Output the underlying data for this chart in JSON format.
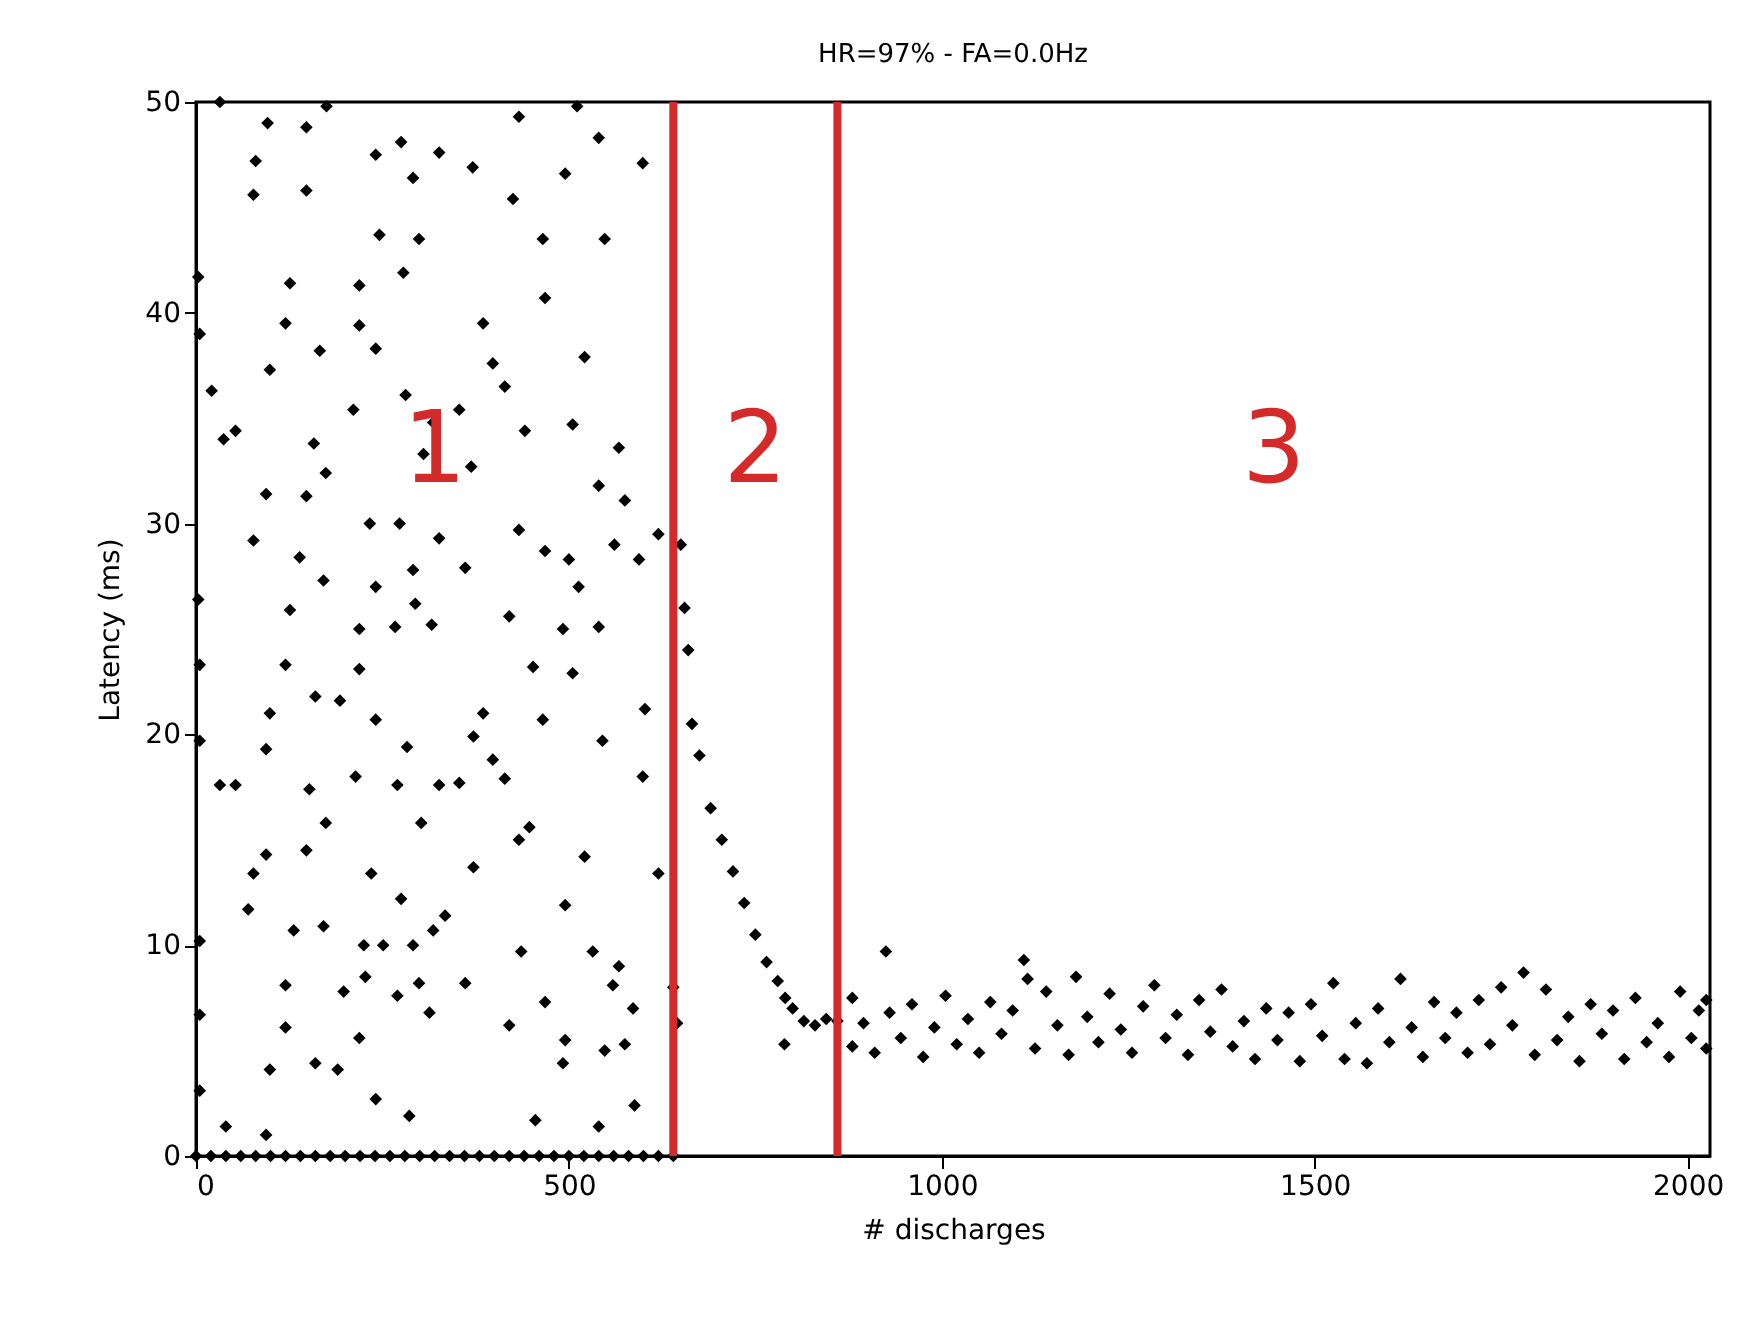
{
  "chart_data": {
    "type": "scatter",
    "title": "HR=97% - FA=0.0Hz",
    "xlabel": "# discharges",
    "ylabel": "Latency (ms)",
    "xlim": [
      0,
      2030
    ],
    "ylim": [
      0,
      50
    ],
    "xticks": [
      0,
      500,
      1000,
      1500,
      2000
    ],
    "yticks": [
      0,
      10,
      20,
      30,
      40,
      50
    ],
    "grid": false,
    "marker": "diamond",
    "ref_lines": [
      {
        "axis": "x",
        "value": 640,
        "color": "#d42a2a"
      },
      {
        "axis": "x",
        "value": 860,
        "color": "#d42a2a"
      }
    ],
    "annotations": [
      "1",
      "2",
      "3"
    ],
    "series": [
      {
        "color": "#000000",
        "x": [
          32,
          96,
          148,
          175,
          80,
          77,
          148,
          241,
          275,
          291,
          326,
          371,
          433,
          425,
          495,
          511,
          540,
          599,
          246,
          299,
          278,
          219,
          126,
          465,
          548,
          468,
          3,
          5,
          120,
          219,
          241,
          166,
          385,
          398,
          414,
          521,
          99,
          21,
          37,
          53,
          158,
          211,
          281,
          353,
          305,
          174,
          318,
          441,
          505,
          567,
          369,
          94,
          148,
          540,
          575,
          77,
          233,
          273,
          326,
          433,
          468,
          500,
          561,
          620,
          594,
          139,
          171,
          241,
          291,
          361,
          513,
          3,
          126,
          294,
          420,
          219,
          267,
          316,
          492,
          540,
          5,
          120,
          219,
          452,
          505,
          160,
          193,
          99,
          241,
          385,
          465,
          602,
          5,
          94,
          283,
          372,
          398,
          545,
          32,
          53,
          152,
          214,
          270,
          326,
          353,
          414,
          599,
          174,
          302,
          433,
          447,
          94,
          148,
          521,
          235,
          372,
          77,
          620,
          70,
          275,
          495,
          334,
          131,
          171,
          318,
          5,
          225,
          251,
          291,
          436,
          532,
          567,
          120,
          227,
          299,
          361,
          559,
          198,
          270,
          468,
          313,
          586,
          5,
          120,
          420,
          495,
          575,
          219,
          99,
          160,
          190,
          492,
          548,
          5,
          241,
          286,
          455,
          540,
          588,
          40,
          94,
          0,
          20,
          40,
          60,
          80,
          100,
          120,
          140,
          160,
          180,
          200,
          220,
          240,
          260,
          280,
          300,
          320,
          340,
          360,
          380,
          400,
          420,
          440,
          460,
          480,
          500,
          520,
          540,
          560,
          580,
          600,
          620,
          640,
          640,
          645,
          650,
          655,
          660,
          665,
          675,
          690,
          705,
          720,
          735,
          750,
          765,
          780,
          789,
          790,
          800,
          815,
          830,
          845,
          860,
          880,
          880,
          895,
          910,
          925,
          930,
          945,
          960,
          975,
          990,
          1005,
          1020,
          1035,
          1050,
          1065,
          1080,
          1095,
          1110,
          1115,
          1125,
          1140,
          1155,
          1170,
          1180,
          1195,
          1210,
          1225,
          1240,
          1255,
          1270,
          1285,
          1300,
          1315,
          1330,
          1345,
          1360,
          1375,
          1390,
          1405,
          1420,
          1435,
          1450,
          1465,
          1480,
          1495,
          1510,
          1525,
          1540,
          1555,
          1570,
          1585,
          1600,
          1615,
          1630,
          1645,
          1660,
          1675,
          1690,
          1705,
          1720,
          1735,
          1750,
          1765,
          1780,
          1795,
          1810,
          1825,
          1840,
          1855,
          1870,
          1885,
          1900,
          1915,
          1930,
          1945,
          1960,
          1975,
          1990,
          2005,
          2015,
          2025,
          2025
        ],
        "values": [
          50,
          49,
          48.8,
          49.8,
          47.2,
          45.6,
          45.8,
          47.5,
          48.1,
          46.4,
          47.6,
          46.9,
          49.3,
          45.4,
          46.6,
          49.8,
          48.3,
          47.1,
          43.7,
          43.5,
          41.9,
          41.3,
          41.4,
          43.5,
          43.5,
          40.7,
          41.7,
          39,
          39.5,
          39.4,
          38.3,
          38.2,
          39.5,
          37.6,
          36.5,
          37.9,
          37.3,
          36.3,
          34,
          34.4,
          33.8,
          35.4,
          36.1,
          35.4,
          33.3,
          32.4,
          34.8,
          34.4,
          34.7,
          33.6,
          32.7,
          31.4,
          31.3,
          31.8,
          31.1,
          29.2,
          30,
          30,
          29.3,
          29.7,
          28.7,
          28.3,
          29,
          29.5,
          28.3,
          28.4,
          27.3,
          27,
          27.8,
          27.9,
          27,
          26.4,
          25.9,
          26.2,
          25.6,
          25,
          25.1,
          25.2,
          25,
          25.1,
          23.3,
          23.3,
          23.1,
          23.2,
          22.9,
          21.8,
          21.6,
          21,
          20.7,
          21,
          20.7,
          21.2,
          19.7,
          19.3,
          19.4,
          19.9,
          18.8,
          19.7,
          17.6,
          17.6,
          17.4,
          18,
          17.6,
          17.6,
          17.7,
          17.9,
          18,
          15.8,
          15.8,
          15,
          15.6,
          14.3,
          14.5,
          14.2,
          13.4,
          13.7,
          13.4,
          13.4,
          11.7,
          12.2,
          11.9,
          11.4,
          10.7,
          10.9,
          10.7,
          10.2,
          10,
          10,
          10,
          9.7,
          9.7,
          9,
          8.1,
          8.5,
          8.2,
          8.2,
          8.1,
          7.8,
          7.6,
          7.3,
          6.8,
          7,
          6.7,
          6.1,
          6.2,
          5.5,
          5.3,
          5.6,
          4.1,
          4.4,
          4.1,
          4.4,
          5,
          3.1,
          2.7,
          1.9,
          1.7,
          1.4,
          2.4,
          1.4,
          1,
          0,
          0,
          0,
          0,
          0,
          0,
          0,
          0,
          0,
          0,
          0,
          0,
          0,
          0,
          0,
          0,
          0,
          0,
          0,
          0,
          0,
          0,
          0,
          0,
          0,
          0,
          0,
          0,
          0,
          0,
          0,
          0,
          0,
          8,
          6.3,
          29,
          26,
          24,
          20.5,
          19,
          16.5,
          15,
          13.5,
          12,
          10.5,
          9.2,
          8.3,
          5.3,
          7.5,
          7,
          6.4,
          6.2,
          6.5,
          6.4,
          7.5,
          5.2,
          6.3,
          4.9,
          9.7,
          6.8,
          5.6,
          7.2,
          4.7,
          6.1,
          7.6,
          5.3,
          6.5,
          4.9,
          7.3,
          5.8,
          6.9,
          9.3,
          8.4,
          5.1,
          7.8,
          6.2,
          4.8,
          8.5,
          6.6,
          5.4,
          7.7,
          6,
          4.9,
          7.1,
          8.1,
          5.6,
          6.7,
          4.8,
          7.4,
          5.9,
          7.9,
          5.2,
          6.4,
          4.6,
          7,
          5.5,
          6.8,
          4.5,
          7.2,
          5.7,
          8.2,
          4.6,
          6.3,
          4.4,
          7,
          5.4,
          8.4,
          6.1,
          4.7,
          7.3,
          5.6,
          6.8,
          4.9,
          7.4,
          5.3,
          8,
          6.2,
          8.7,
          4.8,
          7.9,
          5.5,
          6.6,
          4.5,
          7.2,
          5.8,
          6.9,
          4.6,
          7.5,
          5.4,
          6.3,
          4.7,
          7.8,
          5.6,
          6.9,
          5.1,
          7.4
        ]
      }
    ]
  }
}
